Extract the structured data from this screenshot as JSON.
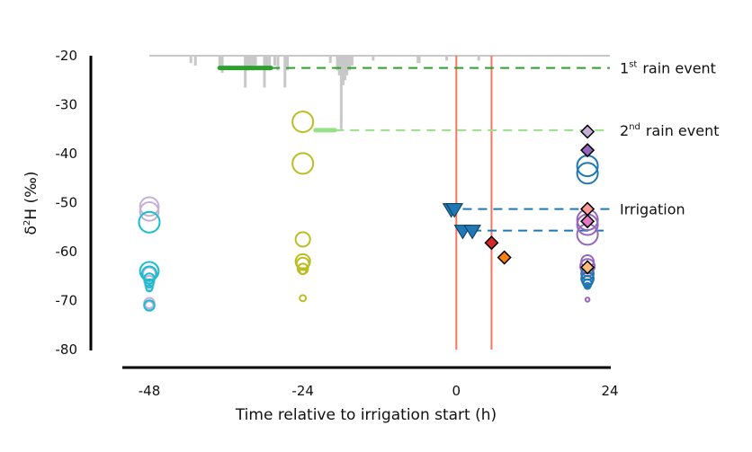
{
  "chart_data": {
    "type": "scatter",
    "title": "",
    "xlabel": "Time relative to irrigation start (h)",
    "ylabel": "δ²H (‰)",
    "ylabel_parts": {
      "delta": "δ",
      "sup": "2",
      "rest": "H (‰)"
    },
    "xlim": [
      -48,
      24
    ],
    "ylim": [
      -80,
      -20
    ],
    "xticks": [
      -48,
      -24,
      0,
      24
    ],
    "xtick_labels": [
      "-48",
      "-24",
      "0",
      "24"
    ],
    "yticks": [
      -20,
      -30,
      -40,
      -50,
      -60,
      -70,
      -80
    ],
    "ytick_labels": [
      "-20",
      "-30",
      "-40",
      "-50",
      "-60",
      "-70",
      "-80"
    ],
    "grid": false,
    "colors": {
      "rain1": "#2ca02c",
      "rain2": "#98df8a",
      "irrigation": "#1f77b4",
      "vline": "#f47560",
      "precip": "#c8c8c8",
      "soil_early_a": "#c5b0d5",
      "soil_early_b": "#17becf",
      "soil_mid": "#bcbd22",
      "soil_late_a": "#9467bd",
      "soil_late_b": "#1f77b4"
    },
    "annotations": [
      {
        "name": "rain-event-1",
        "ordinal": "1",
        "sup": "st",
        "text": "rain event",
        "y": -22.5,
        "color": "#2ca02c",
        "solid_x": [
          -37,
          -29
        ],
        "dash_x_end": 24
      },
      {
        "name": "rain-event-2",
        "ordinal": "2",
        "sup": "nd",
        "text": "rain event",
        "y": -35.2,
        "color": "#98df8a",
        "solid_x": [
          -22,
          -19
        ],
        "dash_x_end": 24
      },
      {
        "name": "irrigation-1",
        "ordinal": "",
        "sup": "",
        "text": "Irrigation",
        "y": -51.3,
        "color": "#1f77b4",
        "solid_x": null,
        "dash_x_start": 1,
        "dash_x_end": 24
      },
      {
        "name": "irrigation-2",
        "ordinal": "",
        "sup": "",
        "text": "",
        "y": -55.7,
        "color": "#1f77b4",
        "solid_x": null,
        "dash_x_start": 2.5,
        "dash_x_end": 24
      }
    ],
    "vertical_lines": [
      0,
      5.5
    ],
    "precipitation": {
      "baseline_y": -20,
      "bars": [
        {
          "x": -41.5,
          "depth": 1.5
        },
        {
          "x": -40.8,
          "depth": 2.0
        },
        {
          "x": -37.0,
          "depth": 2.5
        },
        {
          "x": -36.6,
          "depth": 3.5
        },
        {
          "x": -33.0,
          "depth": 6.5
        },
        {
          "x": -32.6,
          "depth": 3.0
        },
        {
          "x": -32.2,
          "depth": 2.5
        },
        {
          "x": -31.8,
          "depth": 3.0
        },
        {
          "x": -31.4,
          "depth": 2.0
        },
        {
          "x": -30.0,
          "depth": 6.5
        },
        {
          "x": -29.6,
          "depth": 2.5
        },
        {
          "x": -29.2,
          "depth": 3.0
        },
        {
          "x": -28.4,
          "depth": 2.0
        },
        {
          "x": -27.9,
          "depth": 3.0
        },
        {
          "x": -26.8,
          "depth": 6.5
        },
        {
          "x": -26.4,
          "depth": 3.0
        },
        {
          "x": -19.7,
          "depth": 1.5
        },
        {
          "x": -18.6,
          "depth": 3.0
        },
        {
          "x": -18.3,
          "depth": 4.0
        },
        {
          "x": -18.0,
          "depth": 15.0
        },
        {
          "x": -17.7,
          "depth": 6.0
        },
        {
          "x": -17.4,
          "depth": 5.0
        },
        {
          "x": -17.1,
          "depth": 4.0
        },
        {
          "x": -16.7,
          "depth": 3.0
        },
        {
          "x": -16.3,
          "depth": 2.0
        },
        {
          "x": -13.0,
          "depth": 1.0
        },
        {
          "x": -6.0,
          "depth": 1.5
        },
        {
          "x": -5.8,
          "depth": 1.5
        },
        {
          "x": -1.5,
          "depth": 1.0
        },
        {
          "x": 3.5,
          "depth": 1.0
        }
      ]
    },
    "series": [
      {
        "name": "soil-early-lilac",
        "marker": "circle",
        "color": "#c5b0d5",
        "x": -48,
        "points": [
          {
            "y": -50.8,
            "size": 9
          },
          {
            "y": -51.8,
            "size": 9
          },
          {
            "y": -64.5,
            "size": 6
          },
          {
            "y": -66.0,
            "size": 5
          },
          {
            "y": -67.0,
            "size": 4
          },
          {
            "y": -70.5,
            "size": 5
          },
          {
            "y": -71.0,
            "size": 4
          }
        ]
      },
      {
        "name": "soil-early-cyan",
        "marker": "circle",
        "color": "#17becf",
        "x": -48,
        "points": [
          {
            "y": -54.0,
            "size": 10
          },
          {
            "y": -64.0,
            "size": 9
          },
          {
            "y": -64.5,
            "size": 7
          },
          {
            "y": -65.5,
            "size": 5
          },
          {
            "y": -66.5,
            "size": 4
          },
          {
            "y": -67.5,
            "size": 3
          },
          {
            "y": -71.0,
            "size": 5
          }
        ]
      },
      {
        "name": "soil-mid-olive",
        "marker": "circle",
        "color": "#bcbd22",
        "x": -24,
        "points": [
          {
            "y": -33.5,
            "size": 10
          },
          {
            "y": -42.0,
            "size": 10
          },
          {
            "y": -57.5,
            "size": 7
          },
          {
            "y": -62.0,
            "size": 7
          },
          {
            "y": -62.5,
            "size": 6
          },
          {
            "y": -63.5,
            "size": 5
          },
          {
            "y": -64.0,
            "size": 3
          },
          {
            "y": -69.5,
            "size": 3
          }
        ]
      },
      {
        "name": "soil-late-purple",
        "marker": "circle",
        "color": "#9467bd",
        "x": 20.5,
        "points": [
          {
            "y": -53.5,
            "size": 10
          },
          {
            "y": -54.5,
            "size": 10
          },
          {
            "y": -56.5,
            "size": 10
          },
          {
            "y": -62.0,
            "size": 6
          },
          {
            "y": -63.0,
            "size": 7
          },
          {
            "y": -64.0,
            "size": 5
          },
          {
            "y": -66.0,
            "size": 5
          },
          {
            "y": -69.8,
            "size": 2
          }
        ]
      },
      {
        "name": "soil-late-blue",
        "marker": "circle",
        "color": "#1f77b4",
        "x": 20.5,
        "points": [
          {
            "y": -42.5,
            "size": 10
          },
          {
            "y": -44.0,
            "size": 10
          },
          {
            "y": -64.5,
            "size": 6
          },
          {
            "y": -65.5,
            "size": 6
          },
          {
            "y": -66.0,
            "size": 5
          },
          {
            "y": -66.5,
            "size": 4
          },
          {
            "y": -67.0,
            "size": 3
          }
        ]
      },
      {
        "name": "irrigation-water",
        "marker": "triangle-down",
        "color": "#1f77b4",
        "points": [
          {
            "x": -0.8,
            "y": -51.3
          },
          {
            "x": -0.3,
            "y": -51.3
          },
          {
            "x": 1.0,
            "y": -55.7
          },
          {
            "x": 2.5,
            "y": -55.7
          }
        ]
      },
      {
        "name": "rain-samples",
        "marker": "diamond",
        "points": [
          {
            "x": 5.5,
            "y": -58.2,
            "color": "#d62728"
          },
          {
            "x": 7.5,
            "y": -61.2,
            "color": "#ff7f0e"
          },
          {
            "x": 20.5,
            "y": -35.5,
            "color": "#c5b0d5"
          },
          {
            "x": 20.5,
            "y": -39.3,
            "color": "#9467bd"
          },
          {
            "x": 20.5,
            "y": -51.3,
            "color": "#ff9896"
          },
          {
            "x": 20.5,
            "y": -53.8,
            "color": "#e377c2"
          },
          {
            "x": 20.5,
            "y": -63.2,
            "color": "#ffbb78"
          }
        ]
      }
    ]
  }
}
